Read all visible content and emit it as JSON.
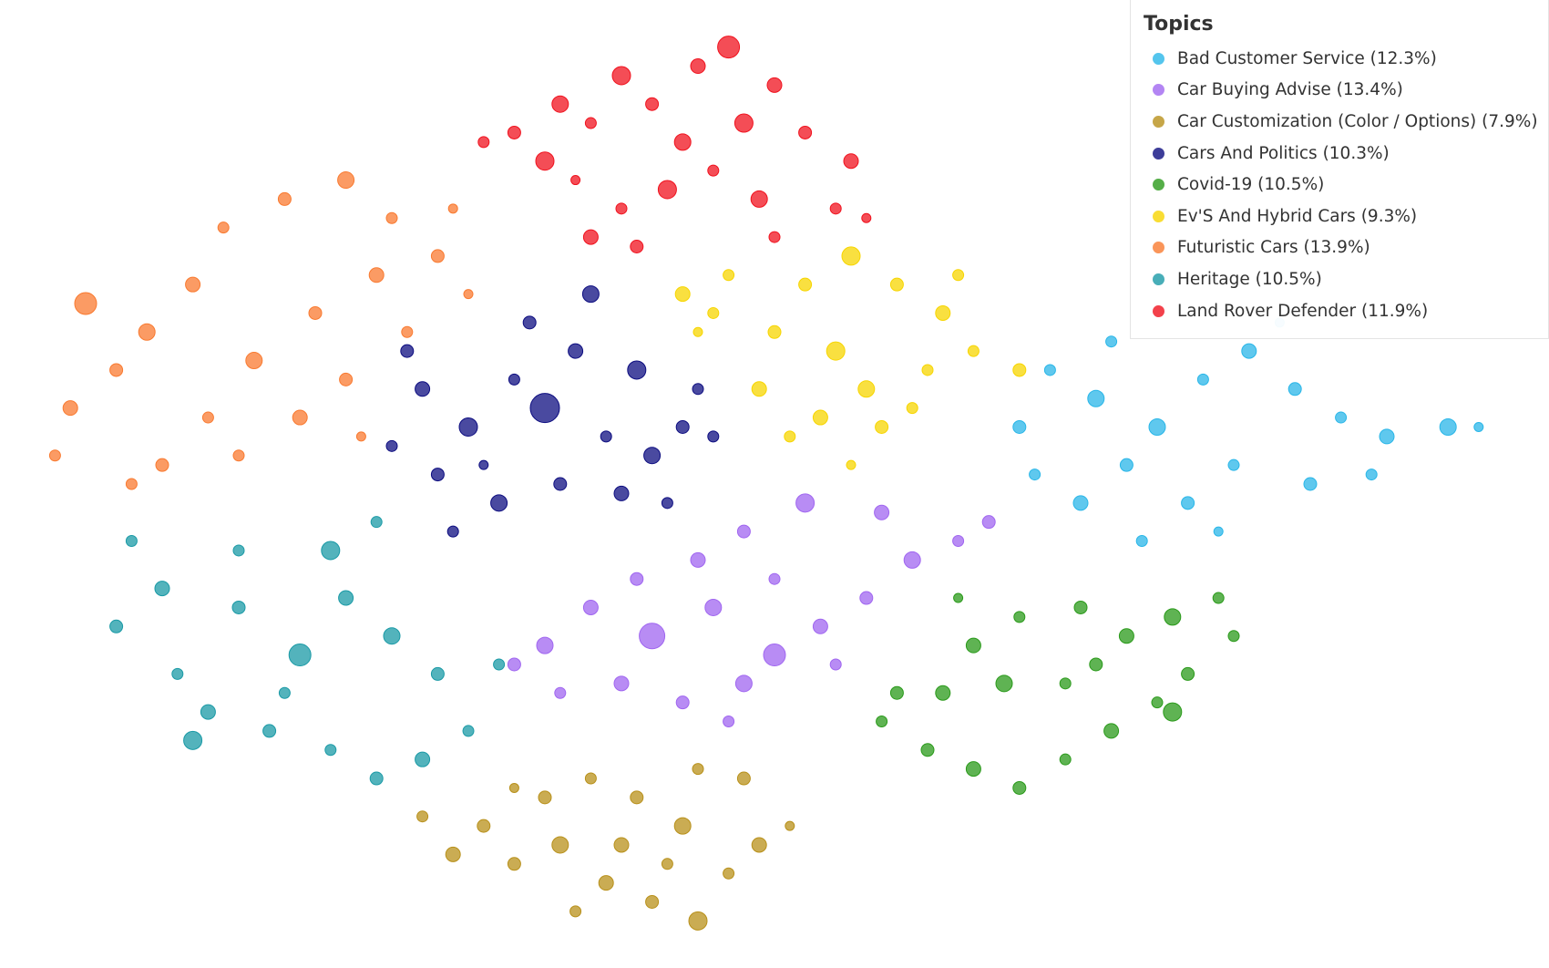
{
  "chart_data": {
    "type": "scatter",
    "legend_title": "Topics",
    "legend_position": "top-right",
    "xlim": [
      0,
      100
    ],
    "ylim": [
      0,
      100
    ],
    "series": [
      {
        "name": "Bad Customer Service (12.3%)",
        "color": "#29b6e8",
        "x": [
          71,
          68,
          66,
          67,
          70,
          73,
          75,
          78,
          81,
          84,
          87,
          90,
          89,
          85,
          80,
          77,
          79,
          74,
          94,
          72,
          83,
          96
        ],
        "y": [
          59,
          62,
          56,
          51,
          48,
          52,
          56,
          61,
          64,
          60,
          57,
          55,
          51,
          50,
          52,
          48,
          45,
          44,
          56,
          65,
          67,
          56
        ],
        "sizes": [
          9,
          6,
          7,
          6,
          8,
          7,
          9,
          6,
          8,
          7,
          6,
          8,
          6,
          7,
          6,
          7,
          5,
          6,
          9,
          6,
          5,
          5
        ]
      },
      {
        "name": "Car Buying Advise (13.4%)",
        "color": "#a066f0",
        "x": [
          42,
          38,
          35,
          33,
          36,
          40,
          44,
          48,
          50,
          53,
          56,
          59,
          62,
          64,
          57,
          52,
          48,
          45,
          41,
          46,
          50,
          54,
          47
        ],
        "y": [
          34,
          37,
          33,
          31,
          28,
          29,
          27,
          29,
          32,
          35,
          38,
          42,
          44,
          46,
          47,
          48,
          45,
          42,
          40,
          37,
          40,
          31,
          25
        ],
        "sizes": [
          14,
          8,
          9,
          7,
          6,
          8,
          7,
          9,
          12,
          8,
          7,
          9,
          6,
          7,
          8,
          10,
          7,
          8,
          7,
          9,
          6,
          6,
          6
        ]
      },
      {
        "name": "Car Customization (Color / Options) (7.9%)",
        "color": "#b8901a",
        "x": [
          31,
          27,
          29,
          33,
          36,
          39,
          42,
          45,
          47,
          49,
          44,
          41,
          38,
          35,
          45,
          48,
          40,
          37,
          43,
          33,
          51
        ],
        "y": [
          14,
          15,
          11,
          10,
          12,
          8,
          6,
          4,
          9,
          12,
          14,
          17,
          19,
          17,
          20,
          19,
          12,
          5,
          10,
          18,
          14
        ],
        "sizes": [
          7,
          6,
          8,
          7,
          9,
          8,
          7,
          10,
          6,
          8,
          9,
          7,
          6,
          7,
          6,
          7,
          8,
          6,
          6,
          5,
          5
        ]
      },
      {
        "name": "Cars And Politics (10.3%)",
        "color": "#0d0d80",
        "x": [
          35,
          30,
          27,
          25,
          28,
          32,
          29,
          36,
          40,
          42,
          44,
          45,
          41,
          37,
          34,
          38,
          33,
          26,
          31,
          43,
          39,
          46
        ],
        "y": [
          58,
          56,
          60,
          54,
          51,
          48,
          45,
          50,
          49,
          53,
          56,
          60,
          62,
          64,
          67,
          70,
          61,
          64,
          52,
          48,
          55,
          55
        ],
        "sizes": [
          16,
          10,
          8,
          6,
          7,
          9,
          6,
          7,
          8,
          9,
          7,
          6,
          10,
          8,
          7,
          9,
          6,
          7,
          5,
          6,
          6,
          6
        ]
      },
      {
        "name": "Covid-19 (10.5%)",
        "color": "#2a9a1a",
        "x": [
          61,
          58,
          57,
          60,
          63,
          66,
          69,
          72,
          75,
          77,
          80,
          79,
          76,
          73,
          70,
          66,
          63,
          65,
          69,
          76,
          71,
          62
        ],
        "y": [
          28,
          28,
          25,
          22,
          20,
          18,
          21,
          24,
          27,
          30,
          34,
          38,
          36,
          34,
          37,
          36,
          33,
          29,
          29,
          26,
          31,
          38
        ],
        "sizes": [
          8,
          7,
          6,
          7,
          8,
          7,
          6,
          8,
          6,
          7,
          6,
          6,
          9,
          8,
          7,
          6,
          8,
          9,
          6,
          10,
          7,
          5
        ]
      },
      {
        "name": "Ev'S And Hybrid Cars (9.3%)",
        "color": "#f7d500",
        "x": [
          54,
          50,
          46,
          44,
          47,
          52,
          55,
          58,
          61,
          63,
          66,
          60,
          56,
          53,
          51,
          57,
          59,
          49,
          62,
          45,
          55
        ],
        "y": [
          64,
          66,
          68,
          70,
          72,
          71,
          74,
          71,
          68,
          64,
          62,
          62,
          60,
          57,
          55,
          56,
          58,
          60,
          72,
          66,
          52
        ],
        "sizes": [
          10,
          7,
          6,
          8,
          6,
          7,
          10,
          7,
          8,
          6,
          7,
          6,
          9,
          8,
          6,
          7,
          6,
          8,
          6,
          5,
          5
        ]
      },
      {
        "name": "Futuristic Cars (13.9%)",
        "color": "#f97a30",
        "x": [
          5,
          4,
          3,
          7,
          9,
          12,
          14,
          18,
          22,
          25,
          28,
          30,
          24,
          20,
          16,
          13,
          10,
          15,
          19,
          22,
          26,
          23,
          8,
          29
        ],
        "y": [
          69,
          58,
          53,
          62,
          66,
          71,
          77,
          80,
          82,
          78,
          74,
          70,
          72,
          68,
          63,
          57,
          52,
          53,
          57,
          61,
          66,
          55,
          50,
          79
        ],
        "sizes": [
          12,
          8,
          6,
          7,
          9,
          8,
          6,
          7,
          9,
          6,
          7,
          5,
          8,
          7,
          9,
          6,
          7,
          6,
          8,
          7,
          6,
          5,
          6,
          5
        ]
      },
      {
        "name": "Heritage (10.5%)",
        "color": "#1a9aa6",
        "x": [
          19,
          15,
          10,
          8,
          7,
          11,
          13,
          17,
          21,
          24,
          27,
          30,
          28,
          25,
          22,
          21,
          24,
          18,
          12,
          32,
          15
        ],
        "y": [
          32,
          37,
          39,
          44,
          35,
          30,
          26,
          24,
          22,
          19,
          21,
          24,
          30,
          34,
          38,
          43,
          46,
          28,
          23,
          31,
          43
        ],
        "sizes": [
          12,
          7,
          8,
          6,
          7,
          6,
          8,
          7,
          6,
          7,
          8,
          6,
          7,
          9,
          8,
          10,
          6,
          6,
          10,
          6,
          6
        ]
      },
      {
        "name": "Land Rover Defender (11.9%)",
        "color": "#f0121e",
        "x": [
          47,
          45,
          40,
          36,
          33,
          31,
          35,
          38,
          42,
          44,
          48,
          50,
          52,
          55,
          54,
          49,
          46,
          43,
          40,
          38,
          41,
          50,
          37,
          56
        ],
        "y": [
          96,
          94,
          93,
          90,
          87,
          86,
          84,
          88,
          90,
          86,
          88,
          92,
          87,
          84,
          79,
          80,
          83,
          81,
          79,
          76,
          75,
          76,
          82,
          78
        ],
        "sizes": [
          12,
          8,
          10,
          9,
          7,
          6,
          10,
          6,
          7,
          9,
          10,
          8,
          7,
          8,
          6,
          9,
          6,
          10,
          6,
          8,
          7,
          6,
          5,
          5
        ]
      }
    ]
  }
}
